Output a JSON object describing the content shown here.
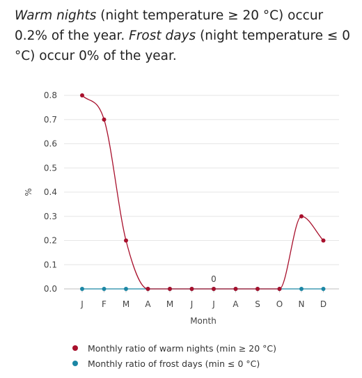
{
  "intro": {
    "warm_term": "Warm nights",
    "warm_text": " (night temperature ≥ 20 °C) occur 0.2% of the year. ",
    "frost_term": "Frost days",
    "frost_text": " (night temperature ≤ 0 °C) occur 0% of the year."
  },
  "chart_data": {
    "type": "line",
    "categories": [
      "J",
      "F",
      "M",
      "A",
      "M",
      "J",
      "J",
      "A",
      "S",
      "O",
      "N",
      "D"
    ],
    "xlabel": "Month",
    "ylabel": "%",
    "ylim": [
      0,
      0.8
    ],
    "yticks": [
      "0.0",
      "0.1",
      "0.2",
      "0.3",
      "0.4",
      "0.5",
      "0.6",
      "0.7",
      "0.8"
    ],
    "grid": true,
    "legend_position": "bottom",
    "series": [
      {
        "name": "Monthly ratio of warm nights (min ≥ 20 °C)",
        "color": "#a8102c",
        "values": [
          0.8,
          0.7,
          0.2,
          0,
          0,
          0,
          0,
          0,
          0,
          0,
          0.3,
          0.2
        ]
      },
      {
        "name": "Monthly ratio of frost days (min ≤ 0 °C)",
        "color": "#1b86a4",
        "values": [
          0,
          0,
          0,
          0,
          0,
          0,
          0,
          0,
          0,
          0,
          0,
          0
        ]
      }
    ],
    "annotations": [
      {
        "category_index": 6,
        "text": "0"
      }
    ]
  }
}
